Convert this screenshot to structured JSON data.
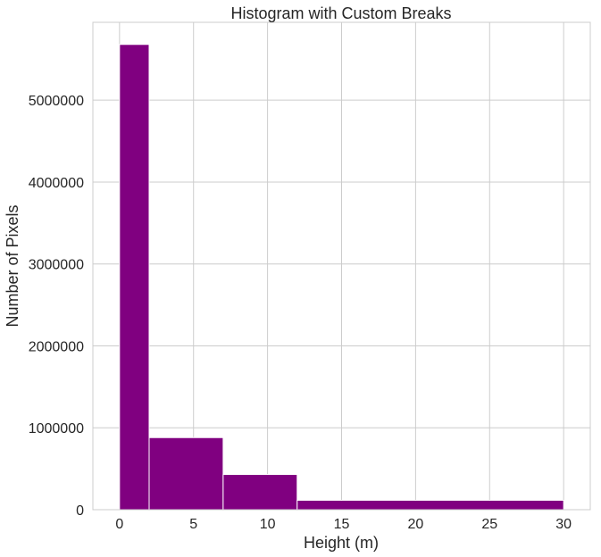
{
  "chart_data": {
    "type": "bar",
    "title": "Histogram with Custom Breaks",
    "xlabel": "Height (m)",
    "ylabel": "Number of Pixels",
    "bins": [
      {
        "x0": 0,
        "x1": 2,
        "count": 5680000
      },
      {
        "x0": 2,
        "x1": 7,
        "count": 880000
      },
      {
        "x0": 7,
        "x1": 12,
        "count": 430000
      },
      {
        "x0": 12,
        "x1": 30,
        "count": 115000
      }
    ],
    "xlim": [
      -1.8,
      31.8
    ],
    "ylim": [
      0,
      5950000
    ],
    "xticks": [
      0,
      5,
      10,
      15,
      20,
      25,
      30
    ],
    "yticks": [
      0,
      1000000,
      2000000,
      3000000,
      4000000,
      5000000
    ],
    "xtick_labels": [
      "0",
      "5",
      "10",
      "15",
      "20",
      "25",
      "30"
    ],
    "ytick_labels": [
      "0",
      "1000000",
      "2000000",
      "3000000",
      "4000000",
      "5000000"
    ],
    "grid": true,
    "bar_color": "#800080",
    "edge_color": "#ffffff"
  }
}
